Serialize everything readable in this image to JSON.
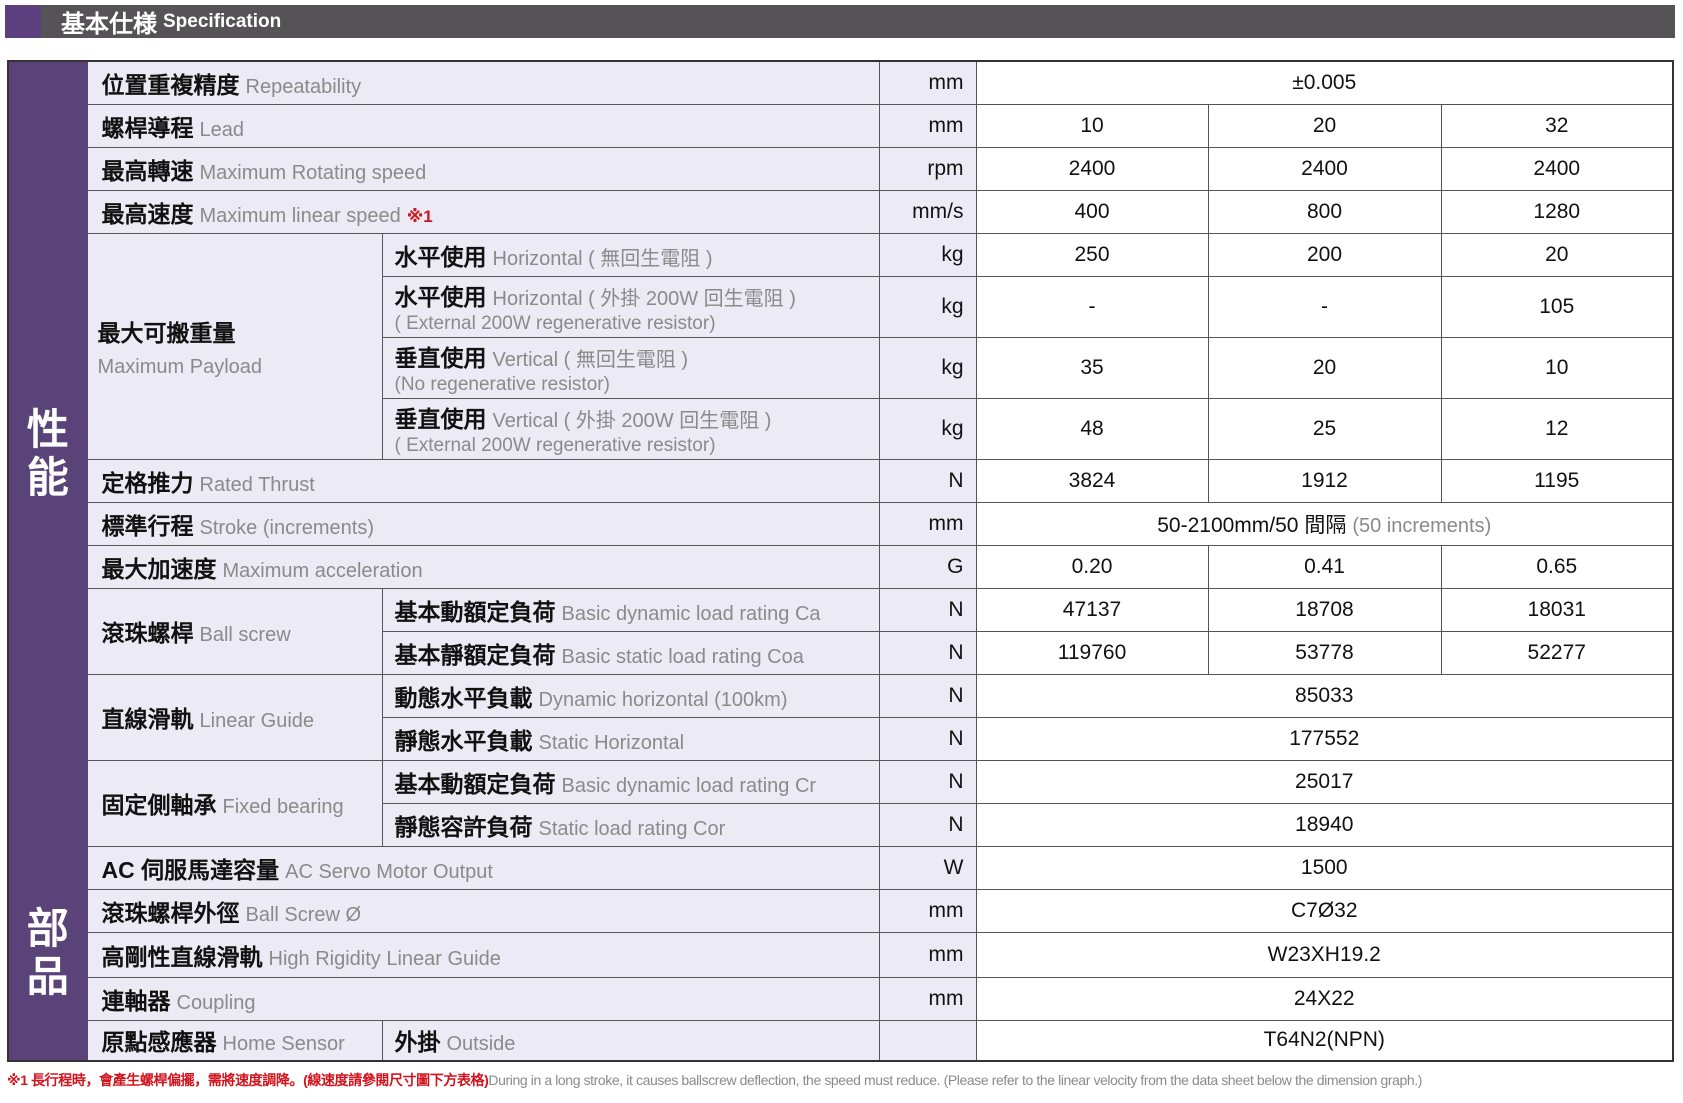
{
  "header": {
    "title_zh": "基本仕様",
    "title_en": "Specification",
    "accent": "#5b3f7e",
    "bar_color": "#555355"
  },
  "sections": [
    {
      "label": "性\n能",
      "rows": [
        {
          "zh": "位置重複精度",
          "en": "Repeatability",
          "unit": "mm",
          "value": "±0.005"
        },
        {
          "zh": "螺桿導程",
          "en": "Lead",
          "unit": "mm",
          "values": [
            "10",
            "20",
            "32"
          ]
        },
        {
          "zh": "最高轉速",
          "en": "Maximum Rotating speed",
          "unit": "rpm",
          "values": [
            "2400",
            "2400",
            "2400"
          ]
        },
        {
          "zh": "最高速度",
          "en": "Maximum linear speed",
          "note": "※1",
          "unit": "mm/s",
          "values": [
            "400",
            "800",
            "1280"
          ]
        },
        {
          "group_zh": "最大可搬重量",
          "group_en": "Maximum Payload",
          "stacked": true,
          "subrows": [
            {
              "zh": "水平使用",
              "en": "Horizontal ( 無回生電阻 )",
              "unit": "kg",
              "values": [
                "250",
                "200",
                "20"
              ]
            },
            {
              "zh": "水平使用",
              "en": "Horizontal ( 外掛 200W 回生電阻 )",
              "en2": "( External 200W regenerative resistor)",
              "unit": "kg",
              "values": [
                "-",
                "-",
                "105"
              ]
            },
            {
              "zh": "垂直使用",
              "en": "Vertical ( 無回生電阻 )",
              "en2": "(No regenerative resistor)",
              "unit": "kg",
              "values": [
                "35",
                "20",
                "10"
              ]
            },
            {
              "zh": "垂直使用",
              "en": "Vertical ( 外掛 200W 回生電阻 )",
              "en2": "( External 200W regenerative resistor)",
              "unit": "kg",
              "values": [
                "48",
                "25",
                "12"
              ]
            }
          ]
        },
        {
          "zh": "定格推力",
          "en": "Rated Thrust",
          "unit": "N",
          "values": [
            "3824",
            "1912",
            "1195"
          ]
        },
        {
          "zh": "標準行程",
          "en": "Stroke (increments)",
          "unit": "mm",
          "value": "50-2100mm/50 間隔",
          "value_note": "(50 increments)"
        },
        {
          "zh": "最大加速度",
          "en": "Maximum acceleration",
          "unit": "G",
          "values": [
            "0.20",
            "0.41",
            "0.65"
          ]
        },
        {
          "group_zh": "滾珠螺桿",
          "group_en": "Ball screw",
          "subrows": [
            {
              "zh": "基本動額定負荷",
              "en": "Basic dynamic load rating Ca",
              "unit": "N",
              "values": [
                "47137",
                "18708",
                "18031"
              ]
            },
            {
              "zh": "基本靜額定負荷",
              "en": "Basic static load rating Coa",
              "unit": "N",
              "values": [
                "119760",
                "53778",
                "52277"
              ]
            }
          ]
        },
        {
          "group_zh": "直線滑軌",
          "group_en": "Linear Guide",
          "subrows": [
            {
              "zh": "動態水平負載",
              "en": "Dynamic horizontal (100km)",
              "unit": "N",
              "value": "85033"
            },
            {
              "zh": "靜態水平負載",
              "en": "Static Horizontal",
              "unit": "N",
              "value": "177552"
            }
          ]
        },
        {
          "group_zh": "固定側軸承",
          "group_en": "Fixed bearing",
          "subrows": [
            {
              "zh": "基本動額定負荷",
              "en": "Basic dynamic load rating Cr",
              "unit": "N",
              "value": "25017"
            },
            {
              "zh": "靜態容許負荷",
              "en": "Static load rating Cor",
              "unit": "N",
              "value": "18940"
            }
          ]
        }
      ]
    },
    {
      "label": "部\n品",
      "rows": [
        {
          "zh": "AC 伺服馬達容量",
          "en": "AC Servo Motor Output",
          "unit": "W",
          "value": "1500"
        },
        {
          "zh": "滾珠螺桿外徑",
          "en": "Ball Screw Ø",
          "unit": "mm",
          "value": "C7Ø32"
        },
        {
          "zh": "高剛性直線滑軌",
          "en": "High Rigidity Linear Guide",
          "unit": "mm",
          "value": "W23XH19.2"
        },
        {
          "zh": "連軸器",
          "en": "Coupling",
          "unit": "mm",
          "value": "24X22"
        },
        {
          "zh": "原點感應器",
          "en": "Home Sensor",
          "sub_zh": "外掛",
          "sub_en": "Outside",
          "unit": "",
          "value": "T64N2(NPN)"
        }
      ]
    }
  ],
  "footnote": {
    "zh": "※1 長行程時，會產生螺桿偏擺，需將速度調降。(線速度請參閱尺寸圖下方表格)",
    "en": "During in a long stroke, it causes ballscrew deflection, the speed must reduce. (Please refer to the linear velocity from the data sheet below the dimension graph.)"
  }
}
